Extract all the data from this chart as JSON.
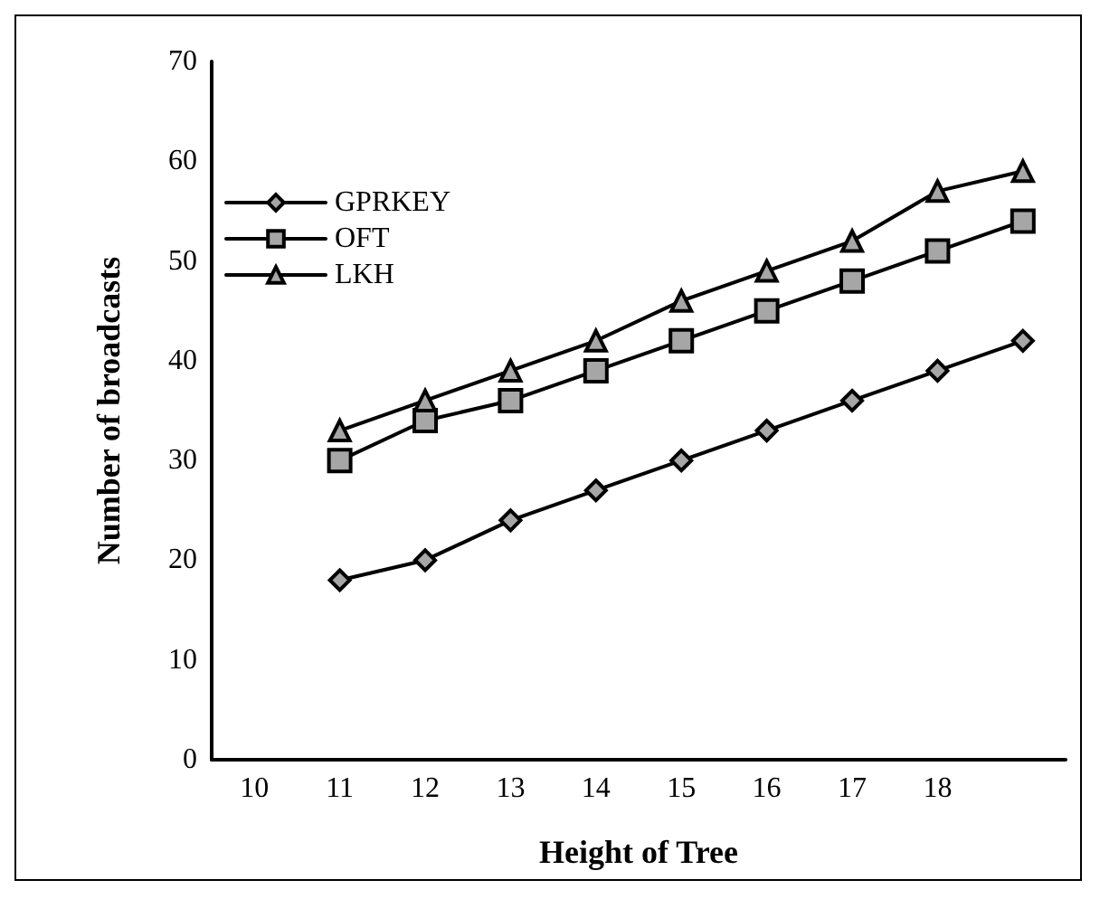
{
  "chart_data": {
    "type": "line",
    "xlabel": "Height of Tree",
    "ylabel": "Number of broadcasts",
    "categories": [
      "10",
      "11",
      "12",
      "13",
      "14",
      "15",
      "16",
      "17",
      "18",
      null
    ],
    "series": [
      {
        "name": "GPRKEY",
        "color": "#000000",
        "marker": "diamond",
        "values": [
          null,
          18,
          20,
          24,
          27,
          30,
          33,
          36,
          39,
          42
        ]
      },
      {
        "name": "OFT",
        "color": "#000000",
        "marker": "square",
        "values": [
          null,
          30,
          34,
          36,
          39,
          42,
          45,
          48,
          51,
          54
        ]
      },
      {
        "name": "LKH",
        "color": "#000000",
        "marker": "triangle",
        "values": [
          null,
          33,
          36,
          39,
          42,
          46,
          49,
          52,
          57,
          59
        ]
      }
    ],
    "ylim": [
      0,
      70
    ],
    "yticks": [
      0,
      10,
      20,
      30,
      40,
      50,
      60,
      70
    ],
    "grid": false,
    "legend": "top left",
    "line_style": "solid"
  }
}
